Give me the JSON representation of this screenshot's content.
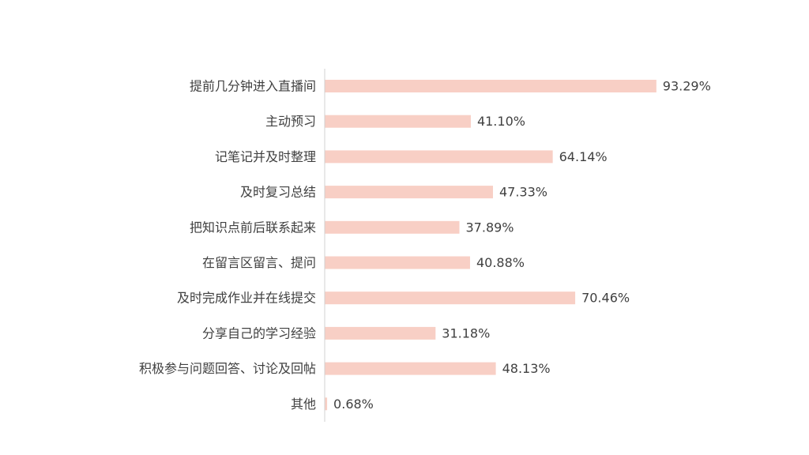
{
  "colors": {
    "bar": "#f8cfc5",
    "axis": "#d0d0d0",
    "text": "#404040",
    "background": "#ffffff"
  },
  "chart_data": {
    "type": "bar",
    "orientation": "horizontal",
    "categories": [
      "提前几分钟进入直播间",
      "主动预习",
      "记笔记并及时整理",
      "及时复习总结",
      "把知识点前后联系起来",
      "在留言区留言、提问",
      "及时完成作业并在线提交",
      "分享自己的学习经验",
      "积极参与问题回答、讨论及回帖",
      "其他"
    ],
    "values": [
      93.29,
      41.1,
      64.14,
      47.33,
      37.89,
      40.88,
      70.46,
      31.18,
      48.13,
      0.68
    ],
    "value_labels": [
      "93.29%",
      "41.10%",
      "64.14%",
      "47.33%",
      "37.89%",
      "40.88%",
      "70.46%",
      "31.18%",
      "48.13%",
      "0.68%"
    ],
    "unit": "%",
    "xlim": [
      0,
      100
    ],
    "grid": false,
    "legend": "none"
  }
}
